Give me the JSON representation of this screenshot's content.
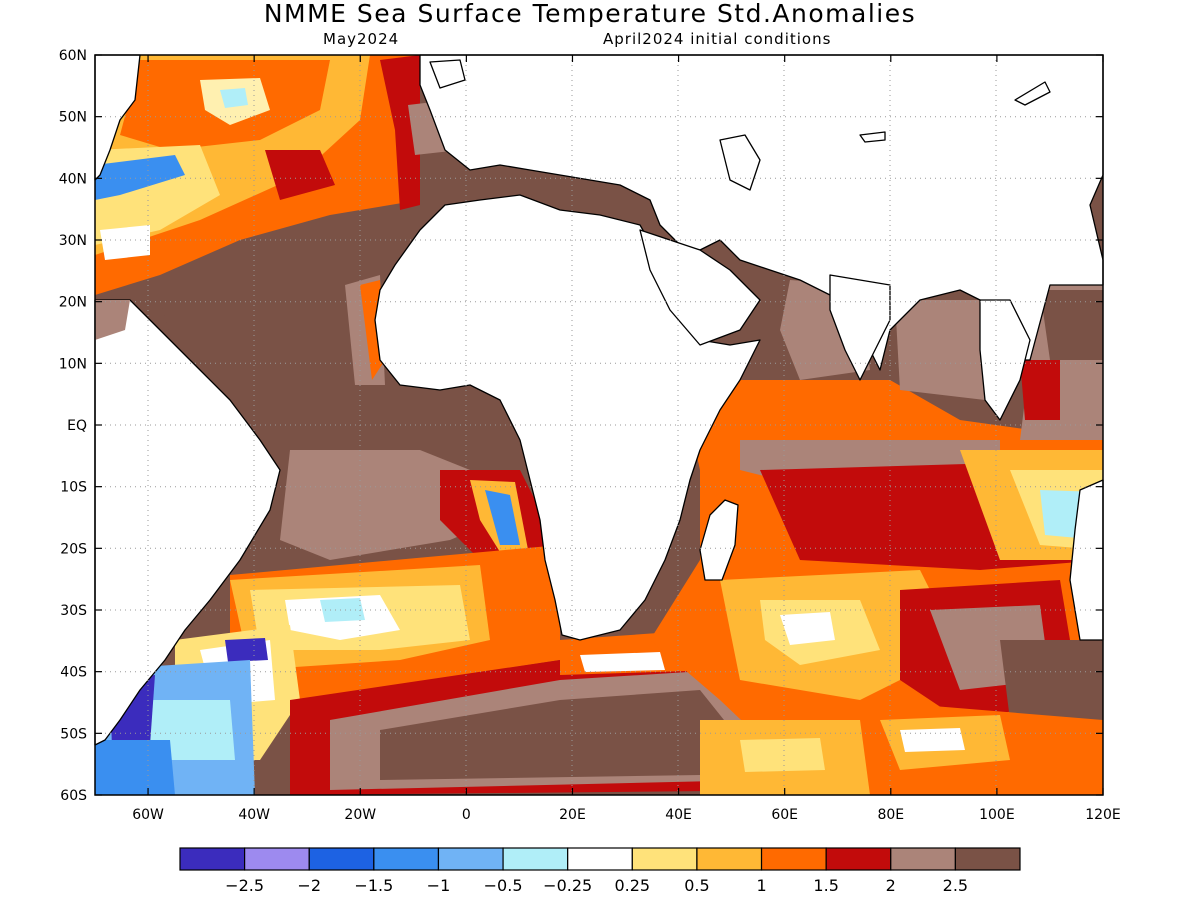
{
  "title": "NMME Sea Surface Temperature Std.Anomalies",
  "subtitle_left": "May2024",
  "subtitle_right": "April2024 initial conditions",
  "map": {
    "lon_range": [
      -70,
      120
    ],
    "lat_range": [
      -60,
      60
    ],
    "grid": "dotted",
    "lat_ticks": [
      "60N",
      "50N",
      "40N",
      "30N",
      "20N",
      "10N",
      "EQ",
      "10S",
      "20S",
      "30S",
      "40S",
      "50S",
      "60S"
    ],
    "lon_ticks": [
      "60W",
      "40W",
      "20W",
      "0",
      "20E",
      "40E",
      "60E",
      "80E",
      "100E",
      "120E"
    ]
  },
  "colorbar": {
    "colors": [
      "#3b2cbd",
      "#9d8aef",
      "#1d62e3",
      "#3a8ff0",
      "#70b3f5",
      "#b0eef8",
      "#ffffff",
      "#ffe27a",
      "#ffb835",
      "#ff6a00",
      "#c20b0b",
      "#ab8479",
      "#7a5246"
    ],
    "labels": [
      "-2.5",
      "-2",
      "-1.5",
      "-1",
      "-0.5",
      "-0.25",
      "0.25",
      "0.5",
      "1",
      "1.5",
      "2",
      "2.5"
    ]
  }
}
